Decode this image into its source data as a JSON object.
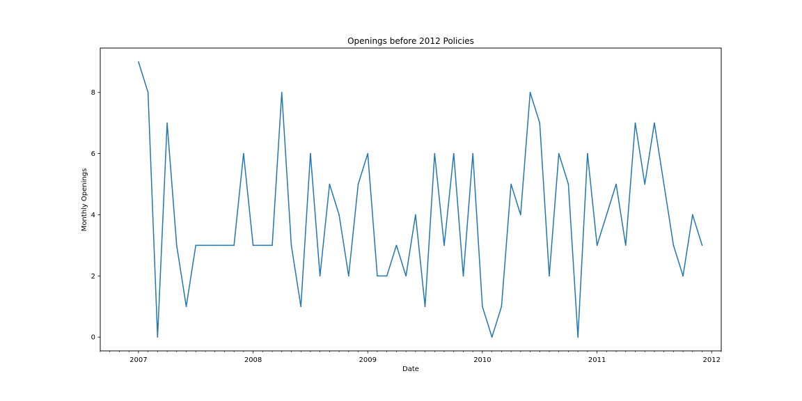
{
  "chart_data": {
    "type": "line",
    "title": "Openings before 2012 Policies",
    "xlabel": "Date",
    "ylabel": "Monthly Openings",
    "x_ticks": [
      "2007",
      "2008",
      "2009",
      "2010",
      "2011",
      "2012"
    ],
    "y_ticks": [
      "0",
      "2",
      "4",
      "6",
      "8"
    ],
    "xlim": [
      "2006-09",
      "2012-02"
    ],
    "ylim": [
      -0.45,
      9.45
    ],
    "grid": false,
    "legend": "none",
    "series": [
      {
        "color": "#1f77b4",
        "x": [
          "2007-01",
          "2007-02",
          "2007-03",
          "2007-04",
          "2007-05",
          "2007-06",
          "2007-07",
          "2007-08",
          "2007-09",
          "2007-10",
          "2007-11",
          "2007-12",
          "2008-01",
          "2008-02",
          "2008-03",
          "2008-04",
          "2008-05",
          "2008-06",
          "2008-07",
          "2008-08",
          "2008-09",
          "2008-10",
          "2008-11",
          "2008-12",
          "2009-01",
          "2009-02",
          "2009-03",
          "2009-04",
          "2009-05",
          "2009-06",
          "2009-07",
          "2009-08",
          "2009-09",
          "2009-10",
          "2009-11",
          "2009-12",
          "2010-01",
          "2010-02",
          "2010-03",
          "2010-04",
          "2010-05",
          "2010-06",
          "2010-07",
          "2010-08",
          "2010-09",
          "2010-10",
          "2010-11",
          "2010-12",
          "2011-01",
          "2011-02",
          "2011-03",
          "2011-04",
          "2011-05",
          "2011-06",
          "2011-07",
          "2011-08",
          "2011-09",
          "2011-10",
          "2011-11",
          "2011-12"
        ],
        "values": [
          9,
          8,
          0,
          7,
          3,
          1,
          3,
          3,
          3,
          3,
          3,
          6,
          3,
          3,
          3,
          8,
          3,
          1,
          6,
          2,
          5,
          4,
          2,
          5,
          6,
          2,
          2,
          3,
          2,
          4,
          1,
          6,
          3,
          6,
          2,
          6,
          1,
          0,
          1,
          5,
          4,
          8,
          7,
          2,
          6,
          5,
          0,
          6,
          3,
          4,
          5,
          3,
          7,
          5,
          7,
          5,
          3,
          2,
          4,
          3
        ]
      }
    ]
  }
}
